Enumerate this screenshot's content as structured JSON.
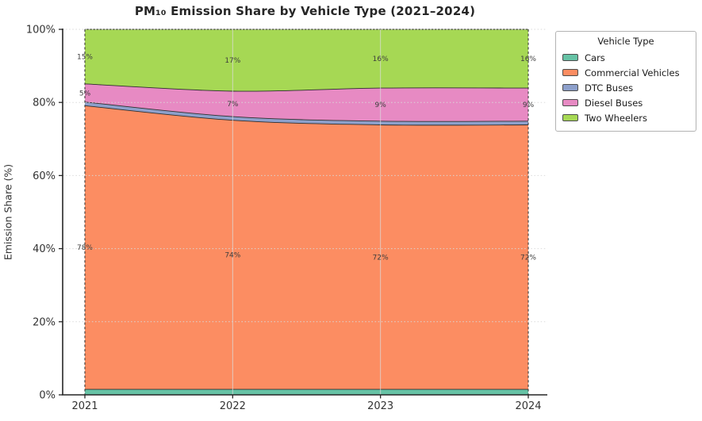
{
  "figure": {
    "title": "PM₁₀ Emission Share by Vehicle Type (2021–2024)",
    "ylabel": "Emission Share (%)"
  },
  "legend": {
    "title": "Vehicle Type",
    "items": [
      {
        "label": "Cars",
        "color": "#66c2a5"
      },
      {
        "label": "Commercial Vehicles",
        "color": "#fc8d62"
      },
      {
        "label": "DTC Buses",
        "color": "#8da0cb"
      },
      {
        "label": "Diesel Buses",
        "color": "#e78ac3"
      },
      {
        "label": "Two Wheelers",
        "color": "#a6d854"
      }
    ]
  },
  "chart_data": {
    "type": "area",
    "stacked": true,
    "title": "PM₁₀ Emission Share by Vehicle Type (2021–2024)",
    "xlabel": "",
    "ylabel": "Emission Share (%)",
    "x": [
      2021,
      2022,
      2023,
      2024
    ],
    "x_tick_labels": [
      "2021",
      "2022",
      "2023",
      "2024"
    ],
    "y_ticks": [
      0,
      20,
      40,
      60,
      80,
      100
    ],
    "y_tick_labels": [
      "0%",
      "20%",
      "40%",
      "60%",
      "80%",
      "100%"
    ],
    "ylim": [
      0,
      100
    ],
    "grid": true,
    "legend_title": "Vehicle Type",
    "legend_position": "outside upper right",
    "series": [
      {
        "name": "Cars",
        "color": "#66c2a5",
        "values": [
          1.5,
          1.5,
          1.5,
          1.5
        ],
        "data_labels": [
          "",
          "",
          "",
          ""
        ]
      },
      {
        "name": "Commercial Vehicles",
        "color": "#fc8d62",
        "values": [
          78,
          74,
          72,
          72
        ],
        "data_labels": [
          "78%",
          "74%",
          "72%",
          "72%"
        ]
      },
      {
        "name": "DTC Buses",
        "color": "#8da0cb",
        "values": [
          1,
          1,
          1,
          1
        ],
        "data_labels": [
          "",
          "",
          "",
          ""
        ]
      },
      {
        "name": "Diesel Buses",
        "color": "#e78ac3",
        "values": [
          5,
          7,
          9,
          9
        ],
        "data_labels": [
          "5%",
          "7%",
          "9%",
          "9%"
        ]
      },
      {
        "name": "Two Wheelers",
        "color": "#a6d854",
        "values": [
          15,
          17,
          16,
          16
        ],
        "data_labels": [
          "15%",
          "17%",
          "16%",
          "16%"
        ]
      }
    ]
  }
}
